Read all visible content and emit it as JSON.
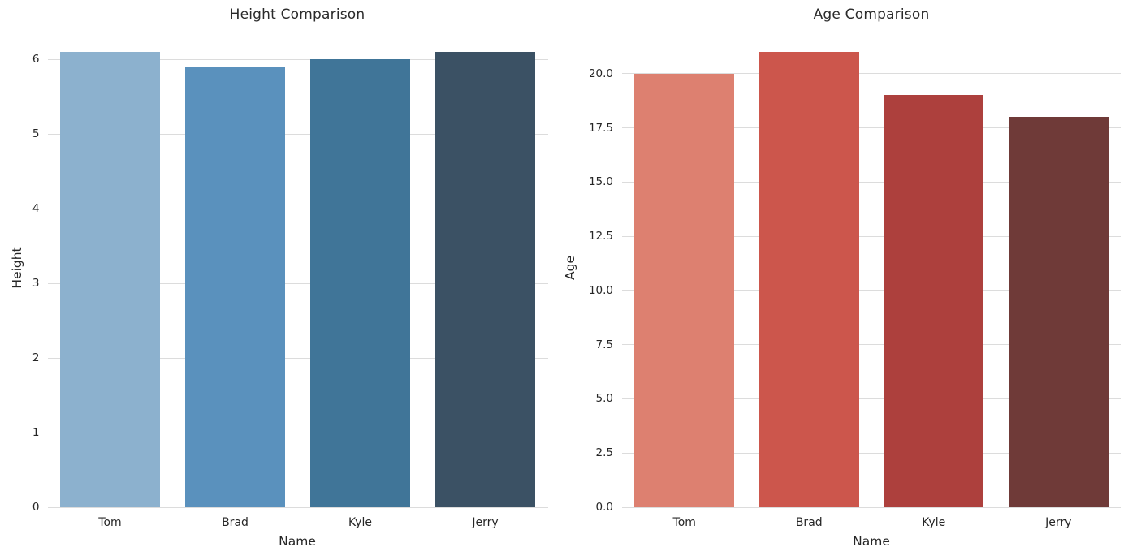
{
  "figure": {
    "background_color": "#ffffff",
    "text_color": "#262626",
    "grid_color": "#dcdcdc"
  },
  "chart_data": [
    {
      "type": "bar",
      "title": "Height Comparison",
      "xlabel": "Name",
      "ylabel": "Height",
      "categories": [
        "Tom",
        "Brad",
        "Kyle",
        "Jerry"
      ],
      "values": [
        6.1,
        5.9,
        6.0,
        6.1
      ],
      "bar_colors": [
        "#8cb1ce",
        "#5a91bd",
        "#407598",
        "#3b5164"
      ],
      "yticks": [
        0,
        1,
        2,
        3,
        4,
        5,
        6
      ],
      "ytick_labels": [
        "0",
        "1",
        "2",
        "3",
        "4",
        "5",
        "6"
      ],
      "ylim": [
        0,
        6.405
      ],
      "grid": true,
      "legend": "none",
      "bar_rel_width": 0.8
    },
    {
      "type": "bar",
      "title": "Age Comparison",
      "xlabel": "Name",
      "ylabel": "Age",
      "categories": [
        "Tom",
        "Brad",
        "Kyle",
        "Jerry"
      ],
      "values": [
        20,
        21,
        19,
        18
      ],
      "bar_colors": [
        "#dd8070",
        "#cc564c",
        "#ad403d",
        "#6f3a38"
      ],
      "yticks": [
        0,
        2.5,
        5,
        7.5,
        10,
        12.5,
        15,
        17.5,
        20
      ],
      "ytick_labels": [
        "0.0",
        "2.5",
        "5.0",
        "7.5",
        "10.0",
        "12.5",
        "15.0",
        "17.5",
        "20.0"
      ],
      "ylim": [
        0,
        22.05
      ],
      "grid": true,
      "legend": "none",
      "bar_rel_width": 0.8
    }
  ]
}
